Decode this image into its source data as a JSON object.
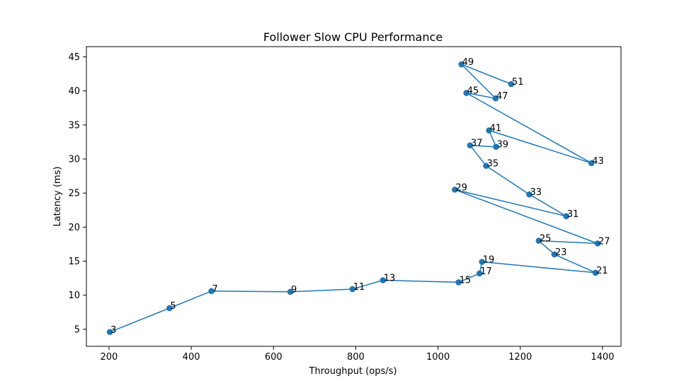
{
  "chart_data": {
    "type": "line",
    "title": "Follower Slow CPU Performance",
    "xlabel": "Throughput (ops/s)",
    "ylabel": "Latency (ms)",
    "xlim": [
      145,
      1445
    ],
    "ylim": [
      2.5,
      46.5
    ],
    "xticks": [
      200,
      400,
      600,
      800,
      1000,
      1200,
      1400
    ],
    "yticks": [
      5,
      10,
      15,
      20,
      25,
      30,
      35,
      40,
      45
    ],
    "grid": false,
    "legend": "none",
    "color": "#1f77b4",
    "marker": "circle",
    "series": [
      {
        "points": [
          {
            "label": "3",
            "x": 202,
            "y": 4.6
          },
          {
            "label": "5",
            "x": 347,
            "y": 8.1
          },
          {
            "label": "7",
            "x": 449,
            "y": 10.6
          },
          {
            "label": "9",
            "x": 641,
            "y": 10.5
          },
          {
            "label": "11",
            "x": 792,
            "y": 10.9
          },
          {
            "label": "13",
            "x": 866,
            "y": 12.2
          },
          {
            "label": "15",
            "x": 1050,
            "y": 11.9
          },
          {
            "label": "17",
            "x": 1101,
            "y": 13.2
          },
          {
            "label": "19",
            "x": 1107,
            "y": 14.9
          },
          {
            "label": "21",
            "x": 1383,
            "y": 13.3
          },
          {
            "label": "23",
            "x": 1283,
            "y": 16.0
          },
          {
            "label": "25",
            "x": 1245,
            "y": 18.0
          },
          {
            "label": "27",
            "x": 1388,
            "y": 17.6
          },
          {
            "label": "29",
            "x": 1041,
            "y": 25.5
          },
          {
            "label": "31",
            "x": 1312,
            "y": 21.6
          },
          {
            "label": "33",
            "x": 1222,
            "y": 24.8
          },
          {
            "label": "35",
            "x": 1117,
            "y": 29.0
          },
          {
            "label": "37",
            "x": 1078,
            "y": 32.0
          },
          {
            "label": "39",
            "x": 1141,
            "y": 31.8
          },
          {
            "label": "41",
            "x": 1124,
            "y": 34.2
          },
          {
            "label": "43",
            "x": 1373,
            "y": 29.4
          },
          {
            "label": "45",
            "x": 1069,
            "y": 39.7
          },
          {
            "label": "47",
            "x": 1140,
            "y": 38.9
          },
          {
            "label": "49",
            "x": 1057,
            "y": 43.9
          },
          {
            "label": "51",
            "x": 1178,
            "y": 41.0
          }
        ]
      }
    ]
  }
}
